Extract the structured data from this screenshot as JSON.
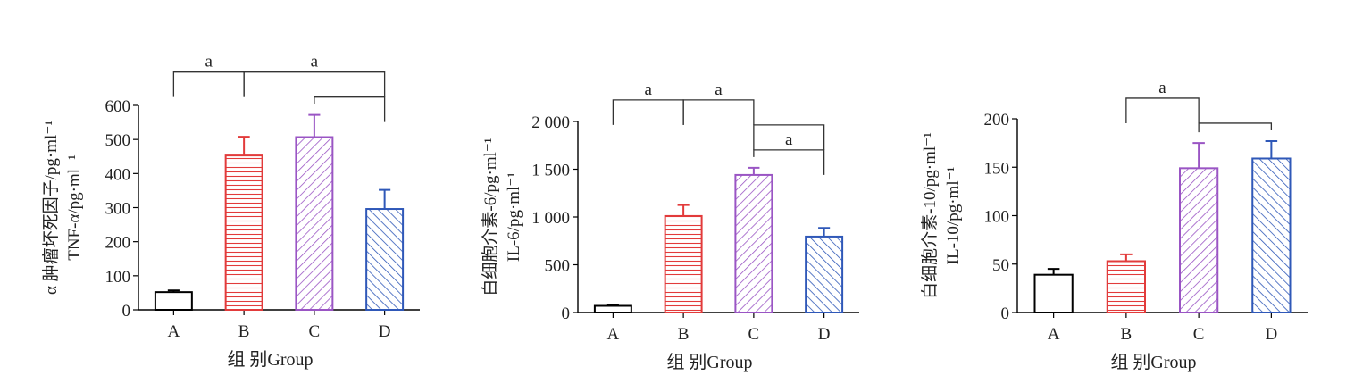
{
  "chart_data": [
    {
      "type": "bar",
      "categories": [
        "A",
        "B",
        "C",
        "D"
      ],
      "values": [
        52,
        453,
        507,
        296
      ],
      "errors": [
        5,
        55,
        65,
        56
      ],
      "ylim": [
        0,
        600
      ],
      "yticks": [
        "0",
        "100",
        "200",
        "300",
        "400",
        "500",
        "600"
      ],
      "ytick_values": [
        0,
        100,
        200,
        300,
        400,
        500,
        600
      ],
      "ylabel_line1": "α 肿瘤坏死因子/pg·ml⁻¹",
      "ylabel_line2": "TNF-α/pg·ml⁻¹",
      "xlabel": "组 别Group",
      "significance": [
        {
          "from": 0,
          "to": 1,
          "label": "a",
          "level": 1
        },
        {
          "from": 1,
          "to": 3,
          "label": "a",
          "level": 1
        },
        {
          "from": 2,
          "to": 3,
          "label": "",
          "level": 0
        }
      ]
    },
    {
      "type": "bar",
      "categories": [
        "A",
        "B",
        "C",
        "D"
      ],
      "values": [
        70,
        1010,
        1440,
        795
      ],
      "errors": [
        10,
        115,
        75,
        90
      ],
      "ylim": [
        0,
        2000
      ],
      "yticks": [
        "0",
        "500",
        "1 000",
        "1 500",
        "2 000"
      ],
      "ytick_values": [
        0,
        500,
        1000,
        1500,
        2000
      ],
      "ylabel_line1": "白细胞介素-6/pg·ml⁻¹",
      "ylabel_line2": "IL-6/pg·ml⁻¹",
      "xlabel": "组 别Group",
      "significance": [
        {
          "from": 0,
          "to": 1,
          "label": "a",
          "level": 2
        },
        {
          "from": 1,
          "to": 2,
          "label": "a",
          "level": 2
        },
        {
          "from": 2,
          "to": 3,
          "label": "",
          "level": 1
        },
        {
          "from": 2,
          "to": 3,
          "label": "a",
          "level": 0
        }
      ]
    },
    {
      "type": "bar",
      "categories": [
        "A",
        "B",
        "C",
        "D"
      ],
      "values": [
        39,
        53,
        149,
        159
      ],
      "errors": [
        6,
        7,
        26,
        18
      ],
      "ylim": [
        0,
        200
      ],
      "yticks": [
        "0",
        "50",
        "100",
        "150",
        "200"
      ],
      "ytick_values": [
        0,
        50,
        100,
        150,
        200
      ],
      "ylabel_line1": "白细胞介素-10/pg·ml⁻¹",
      "ylabel_line2": "IL-10/pg·ml⁻¹",
      "xlabel": "组 别Group",
      "significance": [
        {
          "from": 1,
          "to": 2,
          "label": "a",
          "level": 1
        },
        {
          "from": 2,
          "to": 3,
          "label": "",
          "level": 0
        }
      ]
    }
  ],
  "colors": {
    "A": "#000000",
    "B": "#e23b3b",
    "C": "#9a55c4",
    "D": "#2f58b8",
    "axis": "#000000",
    "bracket": "#333333"
  },
  "patterns": {
    "A": "none",
    "B": "horizontal-lines",
    "C": "diagonal-forward",
    "D": "diagonal-back"
  }
}
